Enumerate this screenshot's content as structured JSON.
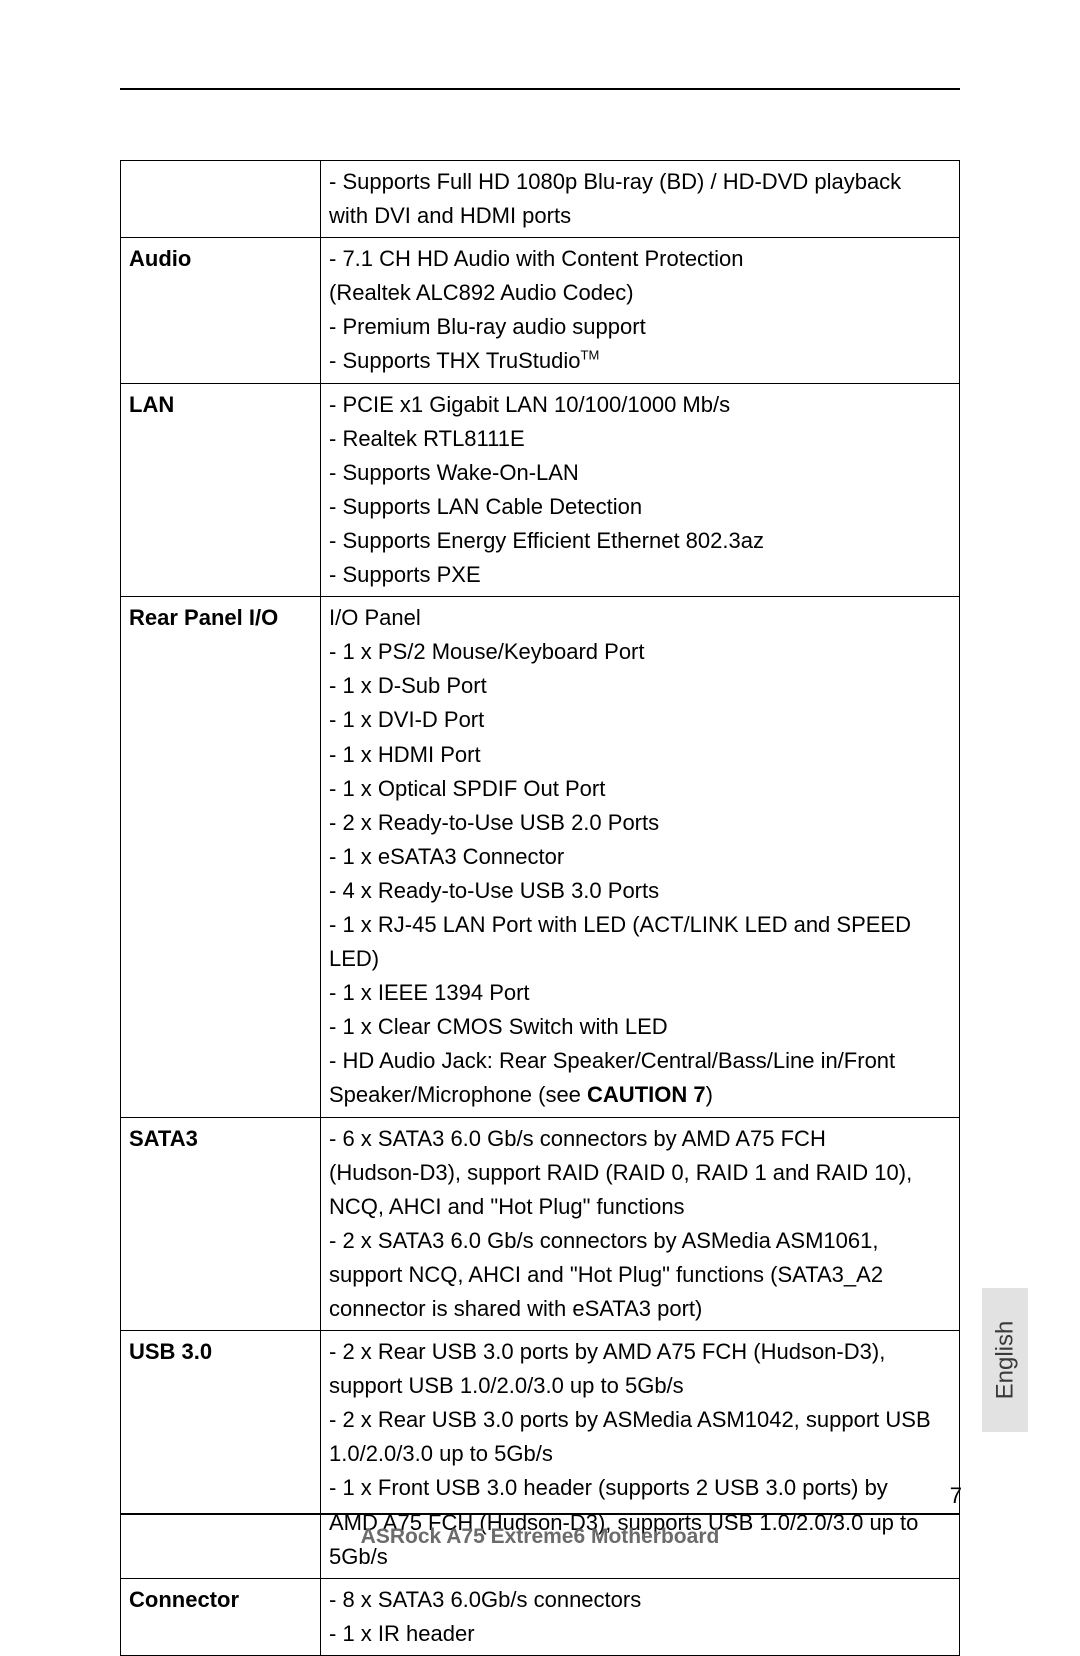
{
  "page": {
    "number": "7",
    "footer": "ASRock  A75 Extreme6  Motherboard",
    "language_tab": "English"
  },
  "rows": [
    {
      "label": "",
      "lines": [
        "- Supports Full HD 1080p Blu-ray (BD) / HD-DVD playback",
        "with DVI and HDMI ports"
      ]
    },
    {
      "label": "Audio",
      "lines": [
        "- 7.1 CH HD Audio with Content Protection",
        "(Realtek ALC892 Audio Codec)",
        "- Premium Blu-ray audio support",
        "- Supports THX TruStudio™"
      ],
      "tm_index": 3
    },
    {
      "label": "LAN",
      "lines": [
        "- PCIE x1 Gigabit LAN 10/100/1000 Mb/s",
        "- Realtek RTL8111E",
        "- Supports Wake-On-LAN",
        "- Supports LAN Cable Detection",
        "- Supports Energy Efficient Ethernet 802.3az",
        "- Supports PXE"
      ]
    },
    {
      "label": "Rear Panel I/O",
      "lines": [
        "I/O Panel",
        "- 1 x PS/2 Mouse/Keyboard Port",
        "- 1 x D-Sub Port",
        "- 1 x DVI-D Port",
        "- 1 x HDMI Port",
        "- 1 x Optical SPDIF Out Port",
        "- 2 x Ready-to-Use USB 2.0 Ports",
        "- 1 x eSATA3 Connector",
        "- 4 x Ready-to-Use USB 3.0 Ports",
        "- 1 x RJ-45 LAN Port with LED (ACT/LINK LED and SPEED",
        "LED)",
        "- 1 x IEEE 1394 Port",
        "- 1 x Clear CMOS Switch with LED",
        "- HD Audio Jack: Rear Speaker/Central/Bass/Line in/Front",
        "Speaker/Microphone (see CAUTION 7)"
      ],
      "caution_index": 14
    },
    {
      "label": "SATA3",
      "lines": [
        "- 6 x SATA3 6.0 Gb/s connectors by AMD A75 FCH",
        "(Hudson-D3), support RAID (RAID 0, RAID 1 and RAID 10),",
        "NCQ, AHCI and \"Hot Plug\" functions",
        "- 2 x SATA3 6.0 Gb/s connectors by ASMedia ASM1061,",
        "support NCQ, AHCI and \"Hot Plug\" functions (SATA3_A2",
        "connector is shared with eSATA3 port)"
      ]
    },
    {
      "label": "USB 3.0",
      "lines": [
        "- 2 x Rear USB 3.0 ports by AMD A75 FCH (Hudson-D3),",
        "support USB 1.0/2.0/3.0 up to 5Gb/s",
        "- 2 x Rear USB 3.0 ports by ASMedia ASM1042, support USB",
        "1.0/2.0/3.0 up to 5Gb/s",
        "- 1 x Front USB 3.0 header (supports 2 USB 3.0 ports) by",
        "AMD A75 FCH (Hudson-D3), supports USB 1.0/2.0/3.0 up to",
        "5Gb/s"
      ]
    },
    {
      "label": "Connector",
      "lines": [
        "- 8 x SATA3 6.0Gb/s connectors",
        "- 1 x IR header"
      ]
    }
  ]
}
